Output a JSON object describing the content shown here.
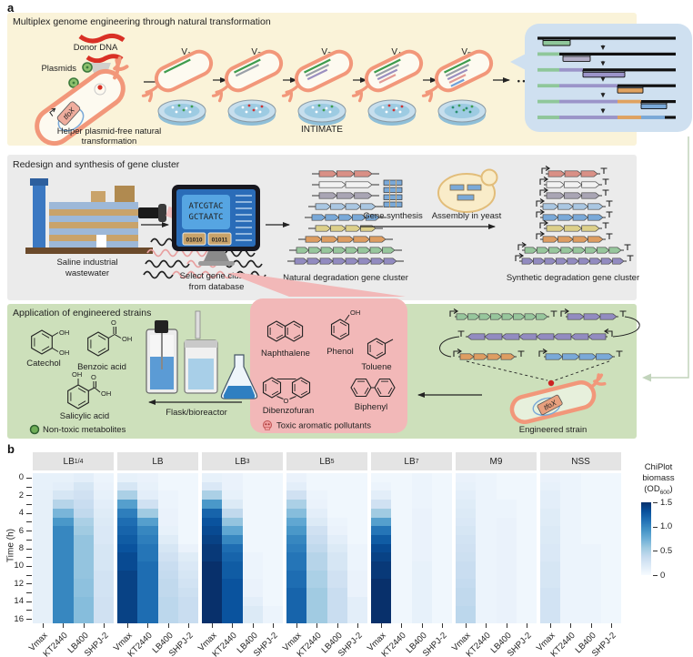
{
  "panel_a": {
    "label": "a",
    "multiplex": {
      "title": "Multiplex genome engineering through natural transformation",
      "donor_dna_label": "Donor DNA",
      "plasmids_label": "Plasmids",
      "tfox_gene": "tfoX",
      "helper_caption_line1": "Helper plasmid-free natural",
      "helper_caption_line2": "transformation",
      "intimate_label": "INTIMATE",
      "ellipsis": "• • •",
      "variant_prefix": "V",
      "variants": [
        {
          "sub": "1",
          "insert_colors": [
            "#3e9c4e"
          ]
        },
        {
          "sub": "2",
          "insert_colors": [
            "#3e9c4e",
            "#9aa0a8"
          ]
        },
        {
          "sub": "3",
          "insert_colors": [
            "#3e9c4e",
            "#9aa0a8",
            "#9b8fc0"
          ]
        },
        {
          "sub": "4",
          "insert_colors": [
            "#3e9c4e",
            "#9aa0a8",
            "#9b8fc0",
            "#e39a94"
          ]
        },
        {
          "sub": "5",
          "insert_colors": [
            "#3e9c4e",
            "#9aa0a8",
            "#9b8fc0",
            "#e39a94",
            "#6f9fd8"
          ]
        }
      ],
      "genome_insert_palette": [
        "#8fc79a",
        "#b3aec6",
        "#9b94c9",
        "#e0a260",
        "#7aa9d8"
      ]
    },
    "redesign": {
      "title": "Redesign and synthesis of gene cluster",
      "wastewater_caption_line1": "Saline industrial",
      "wastewater_caption_line2": "wastewater",
      "screen_line1": "ATCGTAC",
      "screen_line2": "GCTAATC",
      "screen_buttons": [
        "01010",
        "01011"
      ],
      "monitor_caption_line1": "Select gene cluster",
      "monitor_caption_line2": "from database",
      "natural_cluster_caption": "Natural degradation gene cluster",
      "gene_synthesis_label": "Gene synthesis",
      "assembly_label": "Assembly in yeast",
      "synthetic_cluster_caption": "Synthetic degradation gene cluster",
      "cluster_rows": [
        {
          "color": "#d99086",
          "nat_genes": 3,
          "nat_width": 58,
          "syn_genes": 3,
          "syn_width": 54
        },
        {
          "color": "#f2f2f2",
          "nat_genes": 2,
          "nat_width": 58,
          "syn_genes": 3,
          "syn_width": 58
        },
        {
          "color": "#a9a5b4",
          "nat_genes": 3,
          "nat_width": 58,
          "syn_genes": 3,
          "syn_width": 58
        },
        {
          "color": "#aac7e2",
          "nat_genes": 4,
          "nat_width": 66,
          "syn_genes": 4,
          "syn_width": 66
        },
        {
          "color": "#7aa9d8",
          "nat_genes": 5,
          "nat_width": 74,
          "syn_genes": 4,
          "syn_width": 66
        },
        {
          "color": "#ddd08a",
          "nat_genes": 4,
          "nat_width": 66,
          "syn_genes": 3,
          "syn_width": 58
        },
        {
          "color": "#dd9d62",
          "nat_genes": 5,
          "nat_width": 88,
          "syn_genes": 4,
          "syn_width": 66
        },
        {
          "color": "#97c69c",
          "nat_genes": 8,
          "nat_width": 108,
          "syn_genes": 8,
          "syn_width": 106
        },
        {
          "color": "#928bc0",
          "nat_genes": 8,
          "nat_width": 112,
          "syn_genes": 9,
          "syn_width": 112
        }
      ]
    },
    "application": {
      "title": "Application of engineered strains",
      "metabolites": [
        "Catechol",
        "Benzoic acid",
        "Salicylic acid"
      ],
      "atom_labels": {
        "oh": "OH",
        "o": "O"
      },
      "nontoxic_label": "Non-toxic metabolites",
      "flask_label": "Flask/bioreactor",
      "pollutants": [
        "Naphthalene",
        "Phenol",
        "Toluene",
        "Dibenzofuran",
        "Biphenyl"
      ],
      "toxic_label": "Toxic aromatic pollutants",
      "strain_caption": "Engineered strain",
      "tfox_gene": "tfoX"
    }
  },
  "panel_b": {
    "label": "b",
    "colorbar": {
      "title_line1": "ChiPlot",
      "title_line2": "biomass",
      "unit_prefix": "(OD",
      "unit_sub": "600",
      "unit_suffix": ")",
      "ticks": [
        "1.5",
        "1.0",
        "0.5",
        "0"
      ],
      "tick_values": [
        1.5,
        1.0,
        0.5,
        0
      ]
    }
  },
  "chart_data": {
    "type": "heatmap",
    "legend_title": "ChiPlot biomass (OD600)",
    "ylabel": "Time (h)",
    "time_hours": [
      0,
      1,
      2,
      3,
      4,
      5,
      6,
      7,
      8,
      9,
      10,
      11,
      12,
      13,
      14,
      15,
      16
    ],
    "yticks": [
      0,
      2,
      4,
      6,
      8,
      10,
      12,
      14,
      16
    ],
    "od_scale": {
      "min": 0,
      "max": 1.5,
      "colormap": "Blues"
    },
    "strains": [
      "Vmax",
      "KT2440",
      "LB400",
      "SHPJ-2"
    ],
    "media": [
      {
        "name": "LB",
        "sub": "1/4"
      },
      {
        "name": "LB",
        "sub": ""
      },
      {
        "name": "LB",
        "sub": "3"
      },
      {
        "name": "LB",
        "sub": "5"
      },
      {
        "name": "LB",
        "sub": "7"
      },
      {
        "name": "M9",
        "sub": ""
      },
      {
        "name": "NSS",
        "sub": ""
      }
    ],
    "panels": [
      {
        "medium": "LB1/4",
        "series": [
          {
            "name": "Vmax",
            "values": [
              0.12,
              0.12,
              0.13,
              0.13,
              0.13,
              0.13,
              0.13,
              0.13,
              0.13,
              0.13,
              0.13,
              0.13,
              0.13,
              0.13,
              0.13,
              0.13,
              0.13
            ]
          },
          {
            "name": "KT2440",
            "values": [
              0.12,
              0.15,
              0.25,
              0.45,
              0.7,
              0.9,
              1.0,
              1.0,
              1.0,
              1.0,
              1.0,
              1.0,
              1.0,
              1.0,
              1.0,
              1.0,
              1.0
            ]
          },
          {
            "name": "LB400",
            "values": [
              0.15,
              0.25,
              0.3,
              0.35,
              0.4,
              0.5,
              0.55,
              0.6,
              0.6,
              0.6,
              0.6,
              0.6,
              0.62,
              0.62,
              0.65,
              0.65,
              0.65
            ]
          },
          {
            "name": "SHPJ-2",
            "values": [
              0.08,
              0.1,
              0.12,
              0.15,
              0.18,
              0.2,
              0.22,
              0.22,
              0.25,
              0.25,
              0.25,
              0.28,
              0.28,
              0.28,
              0.3,
              0.3,
              0.3
            ]
          }
        ]
      },
      {
        "medium": "LB",
        "series": [
          {
            "name": "Vmax",
            "values": [
              0.12,
              0.25,
              0.5,
              0.85,
              1.05,
              1.15,
              1.2,
              1.25,
              1.3,
              1.35,
              1.35,
              1.4,
              1.4,
              1.4,
              1.4,
              1.4,
              1.4
            ]
          },
          {
            "name": "KT2440",
            "values": [
              0.1,
              0.12,
              0.15,
              0.3,
              0.55,
              0.85,
              1.0,
              1.05,
              1.1,
              1.1,
              1.15,
              1.15,
              1.15,
              1.15,
              1.15,
              1.15,
              1.15
            ]
          },
          {
            "name": "LB400",
            "values": [
              0.05,
              0.05,
              0.08,
              0.08,
              0.1,
              0.1,
              0.12,
              0.18,
              0.25,
              0.3,
              0.35,
              0.38,
              0.4,
              0.4,
              0.42,
              0.42,
              0.42
            ]
          },
          {
            "name": "SHPJ-2",
            "values": [
              0.05,
              0.05,
              0.05,
              0.05,
              0.05,
              0.05,
              0.05,
              0.05,
              0.1,
              0.18,
              0.22,
              0.25,
              0.28,
              0.32,
              0.35,
              0.35,
              0.35
            ]
          }
        ]
      },
      {
        "medium": "LB3",
        "series": [
          {
            "name": "Vmax",
            "values": [
              0.12,
              0.22,
              0.5,
              0.9,
              1.2,
              1.3,
              1.35,
              1.4,
              1.45,
              1.45,
              1.5,
              1.5,
              1.5,
              1.5,
              1.5,
              1.5,
              1.5
            ]
          },
          {
            "name": "KT2440",
            "values": [
              0.1,
              0.1,
              0.12,
              0.2,
              0.4,
              0.6,
              0.8,
              1.0,
              1.15,
              1.2,
              1.25,
              1.25,
              1.3,
              1.3,
              1.3,
              1.3,
              1.3
            ]
          },
          {
            "name": "LB400",
            "values": [
              0.05,
              0.05,
              0.05,
              0.05,
              0.05,
              0.05,
              0.05,
              0.05,
              0.05,
              0.08,
              0.08,
              0.08,
              0.1,
              0.1,
              0.15,
              0.2,
              0.2
            ]
          },
          {
            "name": "SHPJ-2",
            "values": [
              0.05,
              0.05,
              0.05,
              0.05,
              0.05,
              0.05,
              0.05,
              0.05,
              0.05,
              0.05,
              0.05,
              0.05,
              0.05,
              0.05,
              0.05,
              0.08,
              0.08
            ]
          }
        ]
      },
      {
        "medium": "LB5",
        "series": [
          {
            "name": "Vmax",
            "values": [
              0.1,
              0.15,
              0.3,
              0.5,
              0.65,
              0.8,
              0.9,
              1.0,
              1.05,
              1.1,
              1.1,
              1.15,
              1.15,
              1.2,
              1.2,
              1.2,
              1.2
            ]
          },
          {
            "name": "KT2440",
            "values": [
              0.05,
              0.05,
              0.08,
              0.1,
              0.15,
              0.2,
              0.3,
              0.35,
              0.4,
              0.45,
              0.45,
              0.5,
              0.5,
              0.55,
              0.55,
              0.55,
              0.55
            ]
          },
          {
            "name": "LB400",
            "values": [
              0.05,
              0.05,
              0.05,
              0.05,
              0.05,
              0.08,
              0.1,
              0.15,
              0.2,
              0.25,
              0.25,
              0.3,
              0.3,
              0.35,
              0.35,
              0.35,
              0.35
            ]
          },
          {
            "name": "SHPJ-2",
            "values": [
              0.05,
              0.05,
              0.05,
              0.05,
              0.05,
              0.05,
              0.05,
              0.05,
              0.08,
              0.08,
              0.08,
              0.1,
              0.1,
              0.1,
              0.15,
              0.15,
              0.15
            ]
          }
        ]
      },
      {
        "medium": "LB7",
        "series": [
          {
            "name": "Vmax",
            "values": [
              0.05,
              0.08,
              0.15,
              0.3,
              0.55,
              0.85,
              1.1,
              1.25,
              1.35,
              1.4,
              1.45,
              1.45,
              1.5,
              1.5,
              1.5,
              1.5,
              1.5
            ]
          },
          {
            "name": "KT2440",
            "values": [
              0.05,
              0.05,
              0.05,
              0.05,
              0.05,
              0.05,
              0.05,
              0.05,
              0.05,
              0.05,
              0.05,
              0.05,
              0.05,
              0.05,
              0.05,
              0.05,
              0.05
            ]
          },
          {
            "name": "LB400",
            "values": [
              0.08,
              0.08,
              0.08,
              0.08,
              0.1,
              0.1,
              0.1,
              0.1,
              0.1,
              0.1,
              0.12,
              0.12,
              0.12,
              0.12,
              0.12,
              0.12,
              0.12
            ]
          },
          {
            "name": "SHPJ-2",
            "values": [
              0.05,
              0.05,
              0.05,
              0.05,
              0.05,
              0.05,
              0.05,
              0.05,
              0.05,
              0.05,
              0.05,
              0.05,
              0.05,
              0.05,
              0.05,
              0.05,
              0.05
            ]
          }
        ]
      },
      {
        "medium": "M9",
        "series": [
          {
            "name": "Vmax",
            "values": [
              0.1,
              0.12,
              0.15,
              0.18,
              0.2,
              0.22,
              0.25,
              0.28,
              0.3,
              0.32,
              0.35,
              0.35,
              0.38,
              0.4,
              0.4,
              0.42,
              0.42
            ]
          },
          {
            "name": "KT2440",
            "values": [
              0.08,
              0.08,
              0.08,
              0.08,
              0.08,
              0.08,
              0.08,
              0.08,
              0.08,
              0.08,
              0.08,
              0.08,
              0.08,
              0.08,
              0.08,
              0.08,
              0.08
            ]
          },
          {
            "name": "LB400",
            "values": [
              0.05,
              0.05,
              0.05,
              0.08,
              0.08,
              0.1,
              0.1,
              0.1,
              0.1,
              0.1,
              0.1,
              0.1,
              0.1,
              0.1,
              0.1,
              0.1,
              0.1
            ]
          },
          {
            "name": "SHPJ-2",
            "values": [
              0.05,
              0.05,
              0.05,
              0.05,
              0.05,
              0.05,
              0.05,
              0.05,
              0.05,
              0.05,
              0.05,
              0.05,
              0.05,
              0.05,
              0.05,
              0.05,
              0.05
            ]
          }
        ]
      },
      {
        "medium": "NSS",
        "series": [
          {
            "name": "Vmax",
            "values": [
              0.1,
              0.12,
              0.15,
              0.15,
              0.18,
              0.18,
              0.2,
              0.2,
              0.22,
              0.22,
              0.25,
              0.25,
              0.25,
              0.28,
              0.28,
              0.28,
              0.28
            ]
          },
          {
            "name": "KT2440",
            "values": [
              0.08,
              0.08,
              0.08,
              0.08,
              0.08,
              0.08,
              0.08,
              0.08,
              0.08,
              0.08,
              0.08,
              0.08,
              0.08,
              0.08,
              0.08,
              0.08,
              0.08
            ]
          },
          {
            "name": "LB400",
            "values": [
              0.05,
              0.05,
              0.05,
              0.05,
              0.05,
              0.05,
              0.05,
              0.05,
              0.08,
              0.08,
              0.08,
              0.08,
              0.08,
              0.08,
              0.08,
              0.08,
              0.08
            ]
          },
          {
            "name": "SHPJ-2",
            "values": [
              0.05,
              0.05,
              0.05,
              0.05,
              0.05,
              0.05,
              0.05,
              0.05,
              0.05,
              0.05,
              0.05,
              0.05,
              0.05,
              0.05,
              0.05,
              0.05,
              0.05
            ]
          }
        ]
      }
    ]
  }
}
